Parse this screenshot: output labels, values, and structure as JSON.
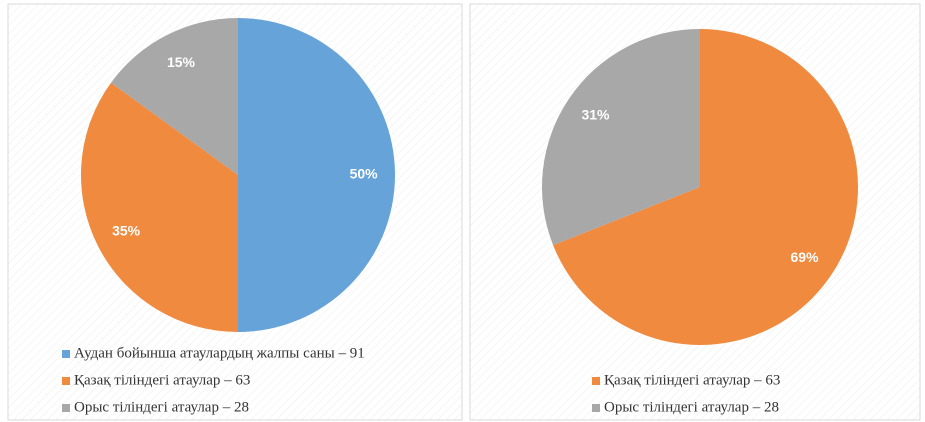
{
  "chart_data": [
    {
      "type": "pie",
      "categories": [
        "Аудан бойынша атаулардың жалпы саны – 91",
        "Қазақ тіліндегі атаулар – 63",
        "Орыс тіліндегі атаулар – 28"
      ],
      "values": [
        50,
        35,
        15
      ],
      "value_labels": [
        "50%",
        "35%",
        "15%"
      ],
      "colors": [
        "#65a3d9",
        "#ef8a3f",
        "#a8a8a8"
      ]
    },
    {
      "type": "pie",
      "categories": [
        "Қазақ тіліндегі атаулар – 63",
        "Орыс тіліндегі атаулар – 28"
      ],
      "values": [
        69,
        31
      ],
      "value_labels": [
        "69%",
        "31%"
      ],
      "colors": [
        "#ef8a3f",
        "#a8a8a8"
      ]
    }
  ]
}
